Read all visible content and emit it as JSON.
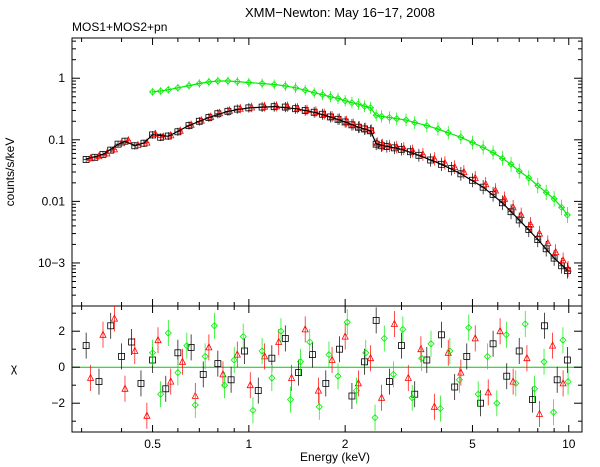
{
  "chart_data": {
    "type": "scatter",
    "title": "XMM−Newton: May 16−17, 2008",
    "subtitle": "MOS1+MOS2+pn",
    "xlabel": "Energy (keV)",
    "xscale": "log",
    "xlim": [
      0.28,
      11.0
    ],
    "xticks": [
      0.5,
      1,
      2,
      5,
      10
    ],
    "xtick_labels": [
      "0.5",
      "1",
      "2",
      "5",
      "10"
    ],
    "colors": {
      "mos1": "#000000",
      "mos2": "#ff0000",
      "pn": "#00ee00",
      "model": "#000000",
      "zero_line": "#00cc00"
    },
    "panels": [
      {
        "name": "spectrum",
        "ylabel": "counts/s/keV",
        "yscale": "log",
        "ylim": [
          0.0002,
          4.5
        ],
        "yticks": [
          0.001,
          0.01,
          0.1,
          1
        ],
        "ytick_labels": [
          "10−3",
          "0.01",
          "0.1",
          "1"
        ],
        "series": [
          {
            "name": "MOS1",
            "marker": "square",
            "x": [
              0.31,
              0.33,
              0.35,
              0.37,
              0.39,
              0.41,
              0.44,
              0.47,
              0.5,
              0.53,
              0.56,
              0.6,
              0.65,
              0.7,
              0.75,
              0.8,
              0.86,
              0.92,
              1.0,
              1.1,
              1.2,
              1.3,
              1.4,
              1.5,
              1.6,
              1.7,
              1.8,
              1.9,
              2.0,
              2.1,
              2.2,
              2.3,
              2.4,
              2.5,
              2.6,
              2.7,
              2.85,
              3.0,
              3.2,
              3.4,
              3.7,
              4.0,
              4.3,
              4.6,
              5.0,
              5.4,
              5.8,
              6.2,
              6.6,
              7.0,
              7.5,
              8.0,
              8.5,
              9.0,
              9.5,
              9.9
            ],
            "y": [
              0.048,
              0.052,
              0.058,
              0.068,
              0.085,
              0.095,
              0.08,
              0.088,
              0.12,
              0.11,
              0.115,
              0.135,
              0.17,
              0.2,
              0.23,
              0.265,
              0.29,
              0.315,
              0.33,
              0.34,
              0.345,
              0.34,
              0.32,
              0.3,
              0.28,
              0.26,
              0.235,
              0.215,
              0.195,
              0.175,
              0.16,
              0.15,
              0.14,
              0.085,
              0.08,
              0.078,
              0.074,
              0.07,
              0.064,
              0.056,
              0.047,
              0.04,
              0.034,
              0.028,
              0.022,
              0.017,
              0.013,
              0.0095,
              0.0068,
              0.005,
              0.0035,
              0.0024,
              0.0017,
              0.0012,
              0.0009,
              0.00075
            ]
          },
          {
            "name": "MOS2",
            "marker": "triangle",
            "x": [
              0.32,
              0.34,
              0.36,
              0.38,
              0.4,
              0.42,
              0.45,
              0.48,
              0.51,
              0.54,
              0.57,
              0.61,
              0.66,
              0.71,
              0.76,
              0.81,
              0.87,
              0.94,
              1.02,
              1.12,
              1.22,
              1.32,
              1.42,
              1.52,
              1.62,
              1.72,
              1.82,
              1.92,
              2.02,
              2.12,
              2.22,
              2.32,
              2.42,
              2.52,
              2.62,
              2.75,
              2.9,
              3.05,
              3.25,
              3.5,
              3.8,
              4.1,
              4.4,
              4.7,
              5.1,
              5.5,
              5.9,
              6.3,
              6.7,
              7.1,
              7.6,
              8.1,
              8.6,
              9.1,
              9.6,
              9.95
            ],
            "y": [
              0.05,
              0.054,
              0.06,
              0.07,
              0.088,
              0.098,
              0.082,
              0.09,
              0.125,
              0.112,
              0.118,
              0.14,
              0.175,
              0.205,
              0.235,
              0.27,
              0.295,
              0.32,
              0.335,
              0.345,
              0.35,
              0.345,
              0.325,
              0.305,
              0.285,
              0.262,
              0.238,
              0.218,
              0.198,
              0.178,
              0.162,
              0.152,
              0.142,
              0.088,
              0.083,
              0.08,
              0.076,
              0.072,
              0.066,
              0.058,
              0.049,
              0.042,
              0.036,
              0.03,
              0.024,
              0.019,
              0.015,
              0.011,
              0.008,
              0.006,
              0.0042,
              0.003,
              0.0021,
              0.0015,
              0.0011,
              0.0008
            ]
          },
          {
            "name": "pn",
            "marker": "diamond",
            "x": [
              0.5,
              0.53,
              0.56,
              0.6,
              0.65,
              0.7,
              0.75,
              0.8,
              0.86,
              0.92,
              1.0,
              1.1,
              1.2,
              1.3,
              1.4,
              1.5,
              1.6,
              1.7,
              1.8,
              1.9,
              2.0,
              2.1,
              2.2,
              2.3,
              2.4,
              2.5,
              2.6,
              2.75,
              2.9,
              3.1,
              3.3,
              3.6,
              3.9,
              4.2,
              4.6,
              5.0,
              5.4,
              5.8,
              6.2,
              6.6,
              7.0,
              7.5,
              8.0,
              8.5,
              9.0,
              9.5,
              9.9
            ],
            "y": [
              0.6,
              0.62,
              0.65,
              0.7,
              0.76,
              0.82,
              0.87,
              0.9,
              0.9,
              0.88,
              0.85,
              0.82,
              0.79,
              0.75,
              0.7,
              0.64,
              0.58,
              0.54,
              0.5,
              0.47,
              0.43,
              0.4,
              0.38,
              0.35,
              0.33,
              0.25,
              0.24,
              0.23,
              0.22,
              0.21,
              0.19,
              0.17,
              0.15,
              0.13,
              0.11,
              0.09,
              0.075,
              0.062,
              0.05,
              0.04,
              0.031,
              0.024,
              0.018,
              0.014,
              0.011,
              0.008,
              0.006
            ]
          }
        ],
        "model": {
          "name": "model",
          "x": [
            0.31,
            0.35,
            0.39,
            0.41,
            0.44,
            0.47,
            0.5,
            0.56,
            0.65,
            0.75,
            0.86,
            1.0,
            1.2,
            1.4,
            1.6,
            1.8,
            2.0,
            2.2,
            2.4,
            2.5,
            2.7,
            3.0,
            3.4,
            4.0,
            4.6,
            5.4,
            6.2,
            7.0,
            8.0,
            9.0,
            9.9
          ],
          "y": [
            0.049,
            0.058,
            0.084,
            0.094,
            0.081,
            0.089,
            0.121,
            0.114,
            0.171,
            0.231,
            0.29,
            0.33,
            0.346,
            0.32,
            0.28,
            0.235,
            0.195,
            0.16,
            0.14,
            0.086,
            0.078,
            0.07,
            0.056,
            0.04,
            0.028,
            0.017,
            0.0095,
            0.005,
            0.0024,
            0.0012,
            0.00076
          ]
        }
      },
      {
        "name": "residuals",
        "ylabel": "χ",
        "yscale": "linear",
        "ylim": [
          -3.6,
          3.4
        ],
        "yticks": [
          -2,
          0,
          2
        ],
        "ytick_labels": [
          "−2",
          "0",
          "2"
        ],
        "zero_line": 0,
        "series": [
          {
            "name": "MOS1",
            "marker": "square",
            "points_per_decade_note": "scattered residuals",
            "x": [
              0.31,
              0.34,
              0.37,
              0.4,
              0.43,
              0.46,
              0.5,
              0.55,
              0.6,
              0.66,
              0.72,
              0.8,
              0.88,
              0.97,
              1.07,
              1.18,
              1.3,
              1.43,
              1.58,
              1.74,
              1.92,
              2.1,
              2.3,
              2.5,
              2.75,
              3.0,
              3.3,
              3.6,
              4.0,
              4.4,
              4.8,
              5.3,
              5.8,
              6.4,
              7.0,
              7.7,
              8.4,
              9.2,
              9.9
            ],
            "y": [
              1.2,
              -0.8,
              2.3,
              0.6,
              1.4,
              -0.9,
              0.4,
              -1.2,
              0.8,
              1.1,
              -0.4,
              0.2,
              -0.7,
              0.9,
              -1.3,
              0.5,
              1.6,
              -0.3,
              0.7,
              -0.9,
              1.0,
              -1.6,
              0.3,
              2.6,
              -0.8,
              1.2,
              -1.5,
              0.4,
              1.8,
              -1.1,
              0.6,
              -2.0,
              1.3,
              -0.5,
              0.9,
              -1.8,
              2.3,
              -0.7,
              0.4
            ]
          },
          {
            "name": "MOS2",
            "marker": "triangle",
            "x": [
              0.32,
              0.35,
              0.38,
              0.41,
              0.44,
              0.48,
              0.52,
              0.57,
              0.62,
              0.68,
              0.75,
              0.83,
              0.92,
              1.01,
              1.12,
              1.24,
              1.36,
              1.5,
              1.65,
              1.82,
              2.0,
              2.2,
              2.4,
              2.6,
              2.85,
              3.15,
              3.45,
              3.8,
              4.2,
              4.6,
              5.1,
              5.6,
              6.1,
              6.7,
              7.4,
              8.1,
              8.9,
              9.6
            ],
            "y": [
              -0.6,
              1.8,
              2.7,
              -1.2,
              0.9,
              -2.7,
              1.5,
              -0.8,
              0.3,
              -1.6,
              1.1,
              -0.4,
              0.7,
              -1.0,
              0.6,
              1.4,
              -0.6,
              2.1,
              -1.3,
              0.4,
              1.7,
              -0.9,
              0.5,
              -1.7,
              2.4,
              -0.6,
              1.0,
              -2.2,
              0.8,
              -0.3,
              1.6,
              -1.4,
              2.0,
              -0.8,
              0.5,
              -2.6,
              1.2,
              -0.9
            ]
          },
          {
            "name": "pn",
            "marker": "diamond",
            "x": [
              0.5,
              0.53,
              0.56,
              0.6,
              0.64,
              0.68,
              0.73,
              0.78,
              0.84,
              0.9,
              0.96,
              1.03,
              1.1,
              1.18,
              1.26,
              1.35,
              1.45,
              1.55,
              1.66,
              1.78,
              1.9,
              2.03,
              2.17,
              2.32,
              2.48,
              2.65,
              2.83,
              3.03,
              3.24,
              3.47,
              3.71,
              3.97,
              4.25,
              4.55,
              4.87,
              5.21,
              5.57,
              5.96,
              6.38,
              6.83,
              7.31,
              7.82,
              8.37,
              8.96,
              9.59,
              9.95
            ],
            "y": [
              0.8,
              -1.5,
              1.9,
              -0.3,
              1.2,
              -2.1,
              0.6,
              2.3,
              -1.0,
              0.4,
              1.7,
              -2.4,
              0.9,
              -0.6,
              2.0,
              -1.8,
              0.3,
              1.4,
              -2.2,
              0.7,
              -0.5,
              2.5,
              -1.3,
              0.8,
              -2.8,
              1.6,
              -0.4,
              2.1,
              -1.7,
              0.5,
              1.3,
              -2.3,
              0.9,
              -0.7,
              2.2,
              -1.5,
              0.6,
              -2.0,
              1.8,
              -0.9,
              2.4,
              -1.2,
              0.3,
              -2.5,
              1.5,
              -0.8
            ]
          }
        ]
      }
    ]
  }
}
